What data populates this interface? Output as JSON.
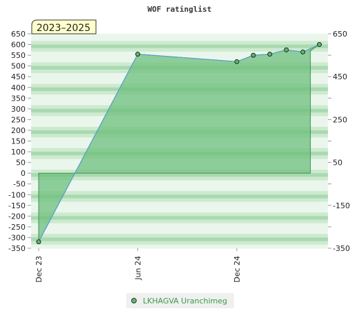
{
  "chart_data": {
    "type": "area",
    "title": "WOF ratinglist",
    "badge": "2023–2025",
    "x_labels": [
      "Dec 23",
      "Jun 24",
      "Dec 24"
    ],
    "left_yticks": [
      650,
      600,
      550,
      500,
      450,
      400,
      350,
      300,
      250,
      200,
      150,
      100,
      50,
      0,
      -50,
      -100,
      -150,
      -200,
      -250,
      -300,
      -350
    ],
    "right_yticks": [
      650,
      450,
      250,
      50,
      -150,
      -350
    ],
    "ylim": [
      -350,
      650
    ],
    "series": [
      {
        "name": "LKHAGVA Uranchimeg",
        "points": [
          {
            "x": "Dec 23",
            "y": -320
          },
          {
            "x": "Jun 24",
            "y": 555
          },
          {
            "x": "Dec 24",
            "y": 520
          },
          {
            "x": "Jan 25",
            "y": 550
          },
          {
            "x": "Feb 25",
            "y": 555
          },
          {
            "x": "Mar 25",
            "y": 575
          },
          {
            "x": "Apr 25",
            "y": 565
          },
          {
            "x": "May 25",
            "y": 600
          }
        ]
      }
    ],
    "colors": {
      "area": "#6dbf7e",
      "line": "#5a9fd4",
      "band_light": "#eaf6ec",
      "band_mid": "#cdeacf",
      "band_dark": "#a9d9b1",
      "marker": "#5cb86c",
      "badge_bg": "#ffffcc",
      "legend_text": "#3a9a4a"
    },
    "legend_position": "bottom-center"
  }
}
